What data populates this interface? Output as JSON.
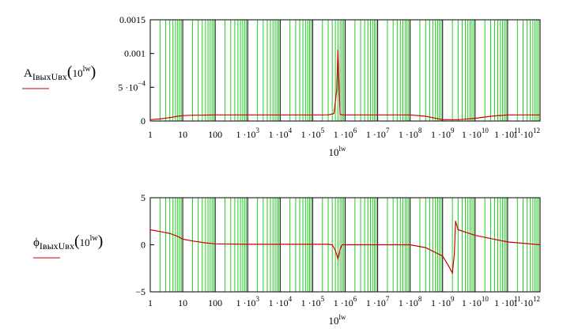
{
  "chart_data": [
    {
      "type": "line",
      "title": "",
      "ylabel_main": "A",
      "ylabel_sub": "IвыхUвх",
      "ylabel_arg": "10",
      "ylabel_arg_sup": "lw",
      "xlabel_base": "10",
      "xlabel_sup": "lw",
      "x_scale": "log",
      "xlim": [
        1,
        1000000000000.0
      ],
      "ylim": [
        0,
        0.0015
      ],
      "grid": true,
      "grid_color": "#22cc22",
      "line_color": "#cc0000",
      "y_ticks": [
        {
          "value": 0,
          "label": "0"
        },
        {
          "value": 0.0005,
          "label": "5 ·10",
          "sup": "−4"
        },
        {
          "value": 0.001,
          "label": "0.001"
        },
        {
          "value": 0.0015,
          "label": "0.0015"
        }
      ],
      "series": [
        {
          "x": [
            1,
            2,
            4,
            7,
            10,
            20,
            50,
            100,
            1000,
            10000,
            100000,
            300000,
            450000,
            550000,
            600000,
            650000,
            700000,
            800000,
            1000000,
            10000000,
            100000000,
            300000000,
            1000000000,
            3000000000,
            10000000000,
            30000000000,
            100000000000,
            1000000000000
          ],
          "y": [
            2e-05,
            3e-05,
            5e-05,
            7e-05,
            8e-05,
            8.5e-05,
            8.8e-05,
            9e-05,
            9e-05,
            9e-05,
            9e-05,
            9e-05,
            0.00011,
            0.00045,
            0.00105,
            0.0005,
            0.0001,
            9e-05,
            9e-05,
            9e-05,
            9e-05,
            7e-05,
            2e-05,
            2e-05,
            4e-05,
            7e-05,
            9e-05,
            9e-05
          ]
        }
      ]
    },
    {
      "type": "line",
      "title": "",
      "ylabel_main": "ϕ",
      "ylabel_sub": "IвыхUвх",
      "ylabel_arg": "10",
      "ylabel_arg_sup": "lw",
      "xlabel_base": "10",
      "xlabel_sup": "lw",
      "x_scale": "log",
      "xlim": [
        1,
        1000000000000.0
      ],
      "ylim": [
        -5,
        5
      ],
      "grid": true,
      "grid_color": "#22cc22",
      "line_color": "#cc0000",
      "y_ticks": [
        {
          "value": -5,
          "label": "−5"
        },
        {
          "value": 0,
          "label": "0"
        },
        {
          "value": 5,
          "label": "5"
        }
      ],
      "series": [
        {
          "x": [
            1,
            2,
            4,
            7,
            10,
            20,
            50,
            100,
            1000,
            10000,
            100000,
            300000,
            400000,
            500000,
            600000,
            700000,
            800000,
            1000000,
            3000000,
            10000000,
            100000000,
            300000000,
            1000000000,
            1500000000,
            2000000000,
            2300000000,
            2500000000,
            3000000000,
            10000000000,
            100000000000,
            1000000000000
          ],
          "y": [
            1.6,
            1.4,
            1.2,
            0.9,
            0.6,
            0.4,
            0.2,
            0.1,
            0.05,
            0.05,
            0.05,
            0.05,
            0.0,
            -0.6,
            -1.5,
            -0.5,
            0.0,
            0.0,
            0.0,
            0.0,
            0.0,
            -0.3,
            -1.2,
            -2.2,
            -3.0,
            -1.0,
            2.5,
            1.6,
            1.0,
            0.3,
            0.0
          ]
        }
      ]
    }
  ],
  "x_tick_labels": [
    {
      "base": "1",
      "sup": ""
    },
    {
      "base": "10",
      "sup": ""
    },
    {
      "base": "100",
      "sup": ""
    },
    {
      "base": "1 ·10",
      "sup": "3"
    },
    {
      "base": "1 ·10",
      "sup": "4"
    },
    {
      "base": "1 ·10",
      "sup": "5"
    },
    {
      "base": "1 ·10",
      "sup": "6"
    },
    {
      "base": "1 ·10",
      "sup": "7"
    },
    {
      "base": "1 ·10",
      "sup": "8"
    },
    {
      "base": "1 ·10",
      "sup": "9"
    },
    {
      "base": "1 ·10",
      "sup": "10"
    },
    {
      "base": "1 ·10",
      "sup": "11"
    },
    {
      "base": "1 ·10",
      "sup": "12"
    }
  ]
}
